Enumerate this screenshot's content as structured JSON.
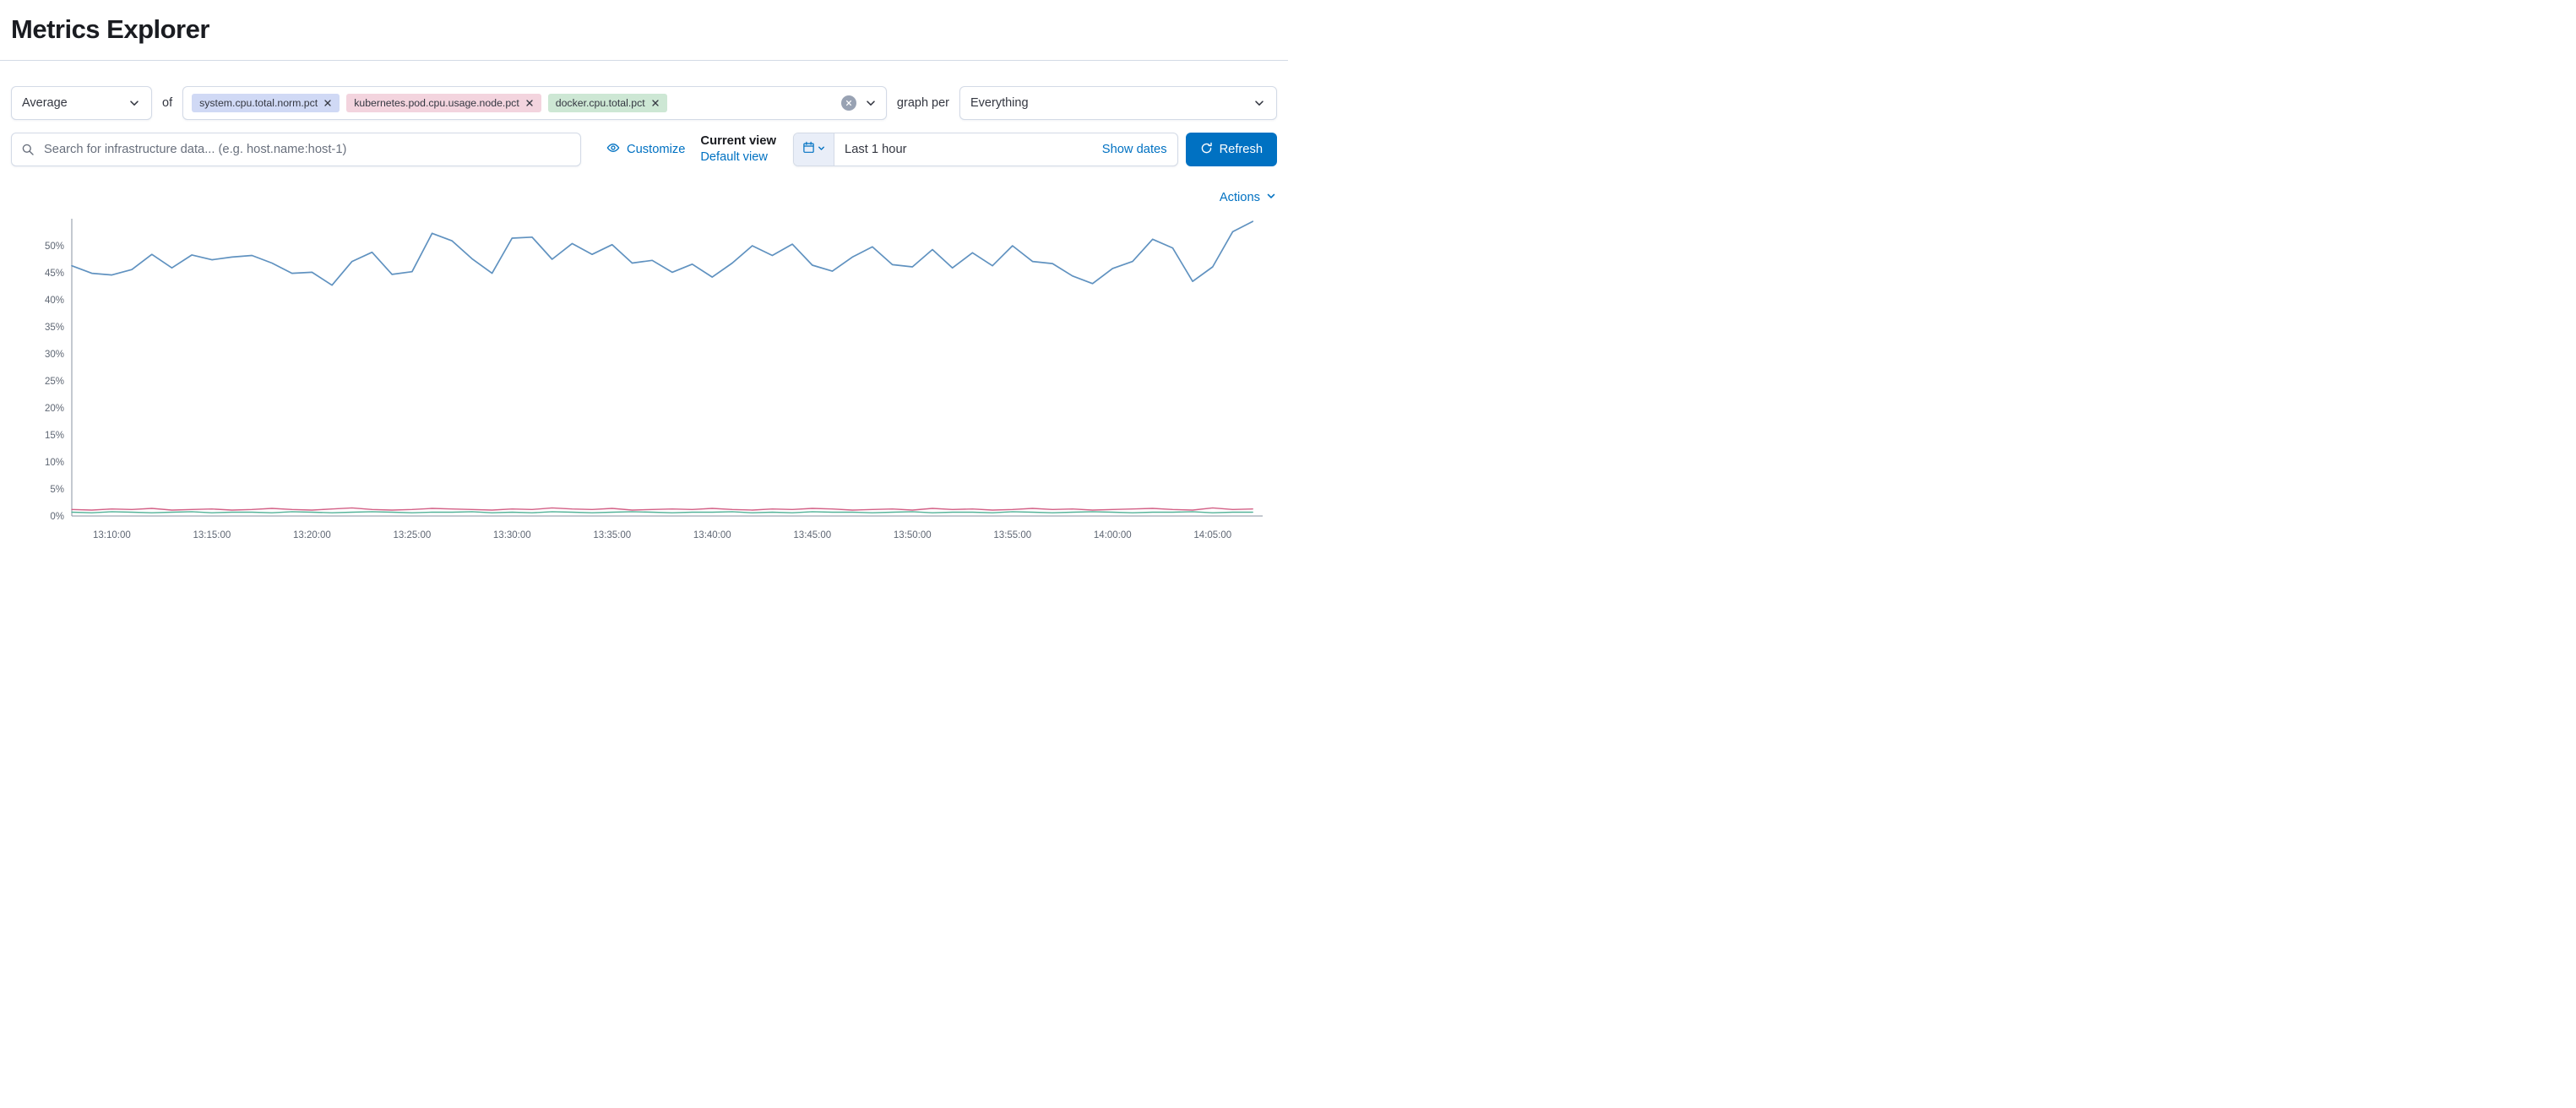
{
  "header": {
    "title": "Metrics Explorer"
  },
  "toolbar": {
    "aggregation": {
      "value": "Average"
    },
    "of_label": "of",
    "metrics": [
      {
        "label": "system.cpu.total.norm.pct",
        "color": "#d0d9f5"
      },
      {
        "label": "kubernetes.pod.cpu.usage.node.pct",
        "color": "#f3d4de"
      },
      {
        "label": "docker.cpu.total.pct",
        "color": "#cde7d4"
      }
    ],
    "graph_per_label": "graph per",
    "group_by": {
      "value": "Everything"
    }
  },
  "search": {
    "placeholder": "Search for infrastructure data... (e.g. host.name:host-1)"
  },
  "view_controls": {
    "customize_label": "Customize",
    "current_view_label": "Current view",
    "default_view_label": "Default view"
  },
  "datepicker": {
    "range_label": "Last 1 hour",
    "show_dates_label": "Show dates",
    "refresh_label": "Refresh"
  },
  "actions_label": "Actions",
  "colors": {
    "link": "#0071c2",
    "primary_button": "#0071c2",
    "border": "#d3dae6"
  },
  "chart_data": {
    "type": "line",
    "title": "",
    "xlabel": "",
    "ylabel": "",
    "grid": false,
    "legend": false,
    "unit": "%",
    "ylim": [
      0,
      55
    ],
    "y_ticks": [
      "0%",
      "5%",
      "10%",
      "15%",
      "20%",
      "25%",
      "30%",
      "35%",
      "40%",
      "45%",
      "50%"
    ],
    "x_start": "13:08:00",
    "x_end": "14:07:30",
    "x_ticks": [
      "13:10:00",
      "13:15:00",
      "13:20:00",
      "13:25:00",
      "13:30:00",
      "13:35:00",
      "13:40:00",
      "13:45:00",
      "13:50:00",
      "13:55:00",
      "14:00:00",
      "14:05:00"
    ],
    "x": [
      "13:08:00",
      "13:09:00",
      "13:10:00",
      "13:11:00",
      "13:12:00",
      "13:13:00",
      "13:14:00",
      "13:15:00",
      "13:16:00",
      "13:17:00",
      "13:18:00",
      "13:19:00",
      "13:20:00",
      "13:21:00",
      "13:22:00",
      "13:23:00",
      "13:24:00",
      "13:25:00",
      "13:26:00",
      "13:27:00",
      "13:28:00",
      "13:29:00",
      "13:30:00",
      "13:31:00",
      "13:32:00",
      "13:33:00",
      "13:34:00",
      "13:35:00",
      "13:36:00",
      "13:37:00",
      "13:38:00",
      "13:39:00",
      "13:40:00",
      "13:41:00",
      "13:42:00",
      "13:43:00",
      "13:44:00",
      "13:45:00",
      "13:46:00",
      "13:47:00",
      "13:48:00",
      "13:49:00",
      "13:50:00",
      "13:51:00",
      "13:52:00",
      "13:53:00",
      "13:54:00",
      "13:55:00",
      "13:56:00",
      "13:57:00",
      "13:58:00",
      "13:59:00",
      "14:00:00",
      "14:01:00",
      "14:02:00",
      "14:03:00",
      "14:04:00",
      "14:05:00",
      "14:06:00",
      "14:07:00"
    ],
    "series": [
      {
        "name": "system.cpu.total.norm.pct",
        "color": "#6092C0",
        "stroke": 1.7,
        "values": [
          46.3,
          44.9,
          44.6,
          45.6,
          48.4,
          45.9,
          48.3,
          47.4,
          47.9,
          48.2,
          46.8,
          44.9,
          45.1,
          42.7,
          47.1,
          48.8,
          44.7,
          45.2,
          52.3,
          50.9,
          47.6,
          44.9,
          51.4,
          51.6,
          47.5,
          50.4,
          48.4,
          50.2,
          46.8,
          47.3,
          45.1,
          46.6,
          44.2,
          46.8,
          50.0,
          48.2,
          50.3,
          46.4,
          45.3,
          47.9,
          49.8,
          46.5,
          46.1,
          49.3,
          45.9,
          48.7,
          46.3,
          50.0,
          47.1,
          46.7,
          44.4,
          43.0,
          45.8,
          47.1,
          51.2,
          49.6,
          43.4,
          46.1,
          52.6,
          54.5
        ]
      },
      {
        "name": "kubernetes.pod.cpu.usage.node.pct",
        "color": "#D36086",
        "stroke": 1.4,
        "values": [
          1.2,
          1.1,
          1.3,
          1.2,
          1.4,
          1.1,
          1.2,
          1.3,
          1.1,
          1.2,
          1.4,
          1.2,
          1.1,
          1.3,
          1.5,
          1.2,
          1.1,
          1.2,
          1.4,
          1.3,
          1.2,
          1.1,
          1.3,
          1.2,
          1.5,
          1.3,
          1.2,
          1.4,
          1.1,
          1.2,
          1.3,
          1.2,
          1.4,
          1.2,
          1.1,
          1.3,
          1.2,
          1.4,
          1.3,
          1.1,
          1.2,
          1.3,
          1.1,
          1.4,
          1.2,
          1.3,
          1.1,
          1.2,
          1.4,
          1.2,
          1.3,
          1.1,
          1.2,
          1.3,
          1.4,
          1.2,
          1.1,
          1.5,
          1.2,
          1.3
        ]
      },
      {
        "name": "docker.cpu.total.pct",
        "color": "#54B399",
        "stroke": 1.4,
        "values": [
          0.7,
          0.6,
          0.8,
          0.7,
          0.6,
          0.7,
          0.8,
          0.6,
          0.7,
          0.7,
          0.6,
          0.8,
          0.7,
          0.6,
          0.7,
          0.8,
          0.7,
          0.6,
          0.7,
          0.7,
          0.8,
          0.6,
          0.7,
          0.6,
          0.8,
          0.7,
          0.6,
          0.7,
          0.8,
          0.7,
          0.6,
          0.7,
          0.7,
          0.8,
          0.6,
          0.7,
          0.6,
          0.8,
          0.7,
          0.7,
          0.6,
          0.7,
          0.8,
          0.6,
          0.7,
          0.7,
          0.6,
          0.8,
          0.7,
          0.6,
          0.7,
          0.8,
          0.7,
          0.6,
          0.7,
          0.7,
          0.8,
          0.6,
          0.7,
          0.7
        ]
      }
    ]
  }
}
